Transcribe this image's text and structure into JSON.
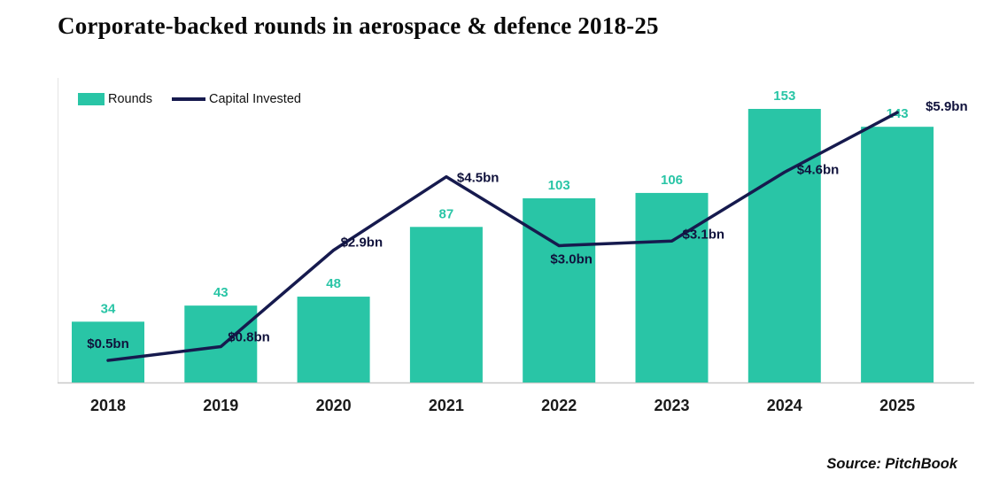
{
  "title": "Corporate-backed rounds in aerospace & defence 2018-25",
  "source": "Source: PitchBook",
  "colors": {
    "bar": "#29C5A6",
    "line": "#161A4E",
    "bar_label": "#29C5A6",
    "line_label": "#10123C",
    "axis": "#C8C8C8",
    "axis_left": "#E4E4E4",
    "year_label": "#1A1A1A",
    "title": "#0A0A0A"
  },
  "chart_data": {
    "type": "bar+line",
    "title": "Corporate-backed rounds in aerospace & defence 2018-25",
    "categories": [
      "2018",
      "2019",
      "2020",
      "2021",
      "2022",
      "2023",
      "2024",
      "2025"
    ],
    "series": [
      {
        "name": "Rounds",
        "type": "bar",
        "values": [
          34,
          43,
          48,
          87,
          103,
          106,
          153,
          143
        ],
        "value_labels": [
          "34",
          "43",
          "48",
          "87",
          "103",
          "106",
          "153",
          "143"
        ]
      },
      {
        "name": "Capital Invested",
        "type": "line",
        "unit": "bn USD",
        "values": [
          0.5,
          0.8,
          2.9,
          4.5,
          3.0,
          3.1,
          4.6,
          5.9
        ],
        "value_labels": [
          "$0.5bn",
          "$0.8bn",
          "$2.9bn",
          "$4.5bn",
          "$3.0bn",
          "$3.1bn",
          "$4.6bn",
          "$5.9bn"
        ]
      }
    ],
    "legend_position": "top-left",
    "grid": false,
    "xlabel": "",
    "ylabel": "",
    "source": "Source: PitchBook"
  }
}
